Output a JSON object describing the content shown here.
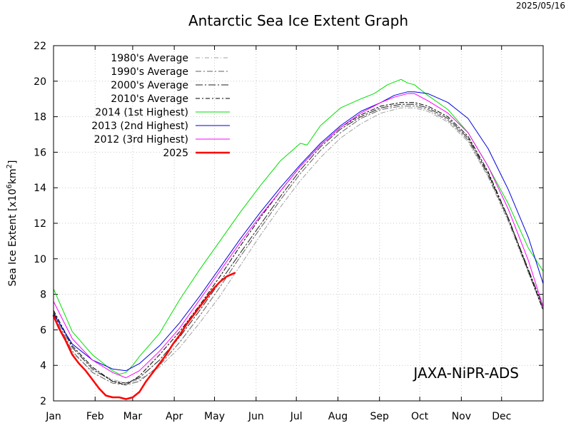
{
  "header": {
    "date": "2025/05/16"
  },
  "watermark": "JAXA-NiPR-ADS",
  "chart_data": {
    "type": "line",
    "title": "Antarctic Sea Ice Extent Graph",
    "xlabel": "",
    "ylabel": "Sea Ice Extent [x10^6km^2]",
    "ylabel_parts": {
      "pre": "Sea Ice Extent [x10",
      "sup1": "6",
      "mid": "km",
      "sup2": "2",
      "post": "]"
    },
    "xlim": [
      1,
      366
    ],
    "ylim": [
      2,
      22
    ],
    "xticks": [
      {
        "label": "Jan",
        "day": 1
      },
      {
        "label": "Feb",
        "day": 32
      },
      {
        "label": "Mar",
        "day": 60
      },
      {
        "label": "Apr",
        "day": 91
      },
      {
        "label": "May",
        "day": 121
      },
      {
        "label": "Jun",
        "day": 152
      },
      {
        "label": "Jul",
        "day": 182
      },
      {
        "label": "Aug",
        "day": 213
      },
      {
        "label": "Sep",
        "day": 244
      },
      {
        "label": "Oct",
        "day": 274
      },
      {
        "label": "Nov",
        "day": 305
      },
      {
        "label": "Dec",
        "day": 335
      }
    ],
    "yticks": [
      2,
      4,
      6,
      8,
      10,
      12,
      14,
      16,
      18,
      20,
      22
    ],
    "grid": true,
    "legend_position": "top-left",
    "series": [
      {
        "name": "1980's Average",
        "color": "#a0a0a0",
        "dash": "6,3,1,3",
        "width": 1,
        "x": [
          1,
          15,
          30,
          45,
          55,
          65,
          80,
          95,
          110,
          125,
          140,
          155,
          170,
          185,
          200,
          215,
          230,
          245,
          260,
          270,
          280,
          295,
          310,
          325,
          340,
          355,
          366
        ],
        "y": [
          6.8,
          4.7,
          3.7,
          3.2,
          3.0,
          3.2,
          3.9,
          5.0,
          6.4,
          7.9,
          9.6,
          11.3,
          12.9,
          14.4,
          15.7,
          16.8,
          17.6,
          18.2,
          18.5,
          18.5,
          18.3,
          17.7,
          16.6,
          14.6,
          12.1,
          9.2,
          7.1
        ]
      },
      {
        "name": "1990's Average",
        "color": "#606060",
        "dash": "8,3,2,3",
        "width": 1,
        "x": [
          1,
          15,
          30,
          45,
          55,
          65,
          80,
          95,
          110,
          125,
          140,
          155,
          170,
          185,
          200,
          215,
          230,
          245,
          260,
          270,
          280,
          295,
          310,
          325,
          340,
          355,
          366
        ],
        "y": [
          6.9,
          4.8,
          3.6,
          3.0,
          2.9,
          3.1,
          4.0,
          5.3,
          6.8,
          8.4,
          10.1,
          11.7,
          13.3,
          14.8,
          16.1,
          17.1,
          17.9,
          18.4,
          18.6,
          18.6,
          18.4,
          17.8,
          16.7,
          14.7,
          12.2,
          9.3,
          7.2
        ]
      },
      {
        "name": "2000's Average",
        "color": "#202020",
        "dash": "10,3,2,3",
        "width": 1,
        "x": [
          1,
          15,
          30,
          45,
          55,
          65,
          80,
          95,
          110,
          125,
          140,
          155,
          170,
          185,
          200,
          215,
          230,
          245,
          260,
          270,
          280,
          295,
          310,
          325,
          340,
          355,
          366
        ],
        "y": [
          7.0,
          5.0,
          3.8,
          3.1,
          3.0,
          3.3,
          4.3,
          5.6,
          7.1,
          8.7,
          10.3,
          11.9,
          13.5,
          15.0,
          16.3,
          17.3,
          18.0,
          18.5,
          18.7,
          18.7,
          18.5,
          17.9,
          16.8,
          14.8,
          12.3,
          9.4,
          7.3
        ]
      },
      {
        "name": "2010's Average",
        "color": "#000000",
        "dash": "6,3,2,3",
        "width": 1,
        "x": [
          1,
          15,
          30,
          45,
          55,
          65,
          80,
          95,
          110,
          125,
          140,
          155,
          170,
          185,
          200,
          215,
          230,
          245,
          260,
          270,
          280,
          295,
          310,
          325,
          340,
          355,
          366
        ],
        "y": [
          7.1,
          5.1,
          3.9,
          3.1,
          2.9,
          3.4,
          4.6,
          5.9,
          7.4,
          9.0,
          10.7,
          12.3,
          13.8,
          15.2,
          16.4,
          17.4,
          18.1,
          18.6,
          18.8,
          18.8,
          18.6,
          18.0,
          16.9,
          14.9,
          12.3,
          9.3,
          7.1
        ]
      },
      {
        "name": "2014 (1st Highest)",
        "color": "#00e000",
        "dash": "",
        "width": 1,
        "x": [
          1,
          15,
          30,
          45,
          50,
          55,
          60,
          65,
          80,
          95,
          110,
          125,
          140,
          155,
          170,
          185,
          190,
          200,
          215,
          230,
          240,
          250,
          260,
          265,
          270,
          280,
          295,
          310,
          325,
          340,
          355,
          366
        ],
        "y": [
          8.3,
          5.9,
          4.6,
          3.7,
          3.5,
          3.6,
          4.0,
          4.5,
          5.8,
          7.7,
          9.4,
          11.0,
          12.6,
          14.1,
          15.5,
          16.5,
          16.4,
          17.5,
          18.5,
          19.0,
          19.3,
          19.8,
          20.1,
          19.9,
          19.8,
          19.2,
          18.4,
          17.1,
          15.2,
          13.1,
          10.6,
          9.3
        ]
      },
      {
        "name": "2013 (2nd Highest)",
        "color": "#0000e0",
        "dash": "",
        "width": 1,
        "x": [
          1,
          15,
          30,
          45,
          55,
          65,
          80,
          95,
          110,
          125,
          140,
          155,
          170,
          185,
          200,
          215,
          230,
          245,
          255,
          265,
          270,
          280,
          295,
          310,
          325,
          340,
          355,
          366
        ],
        "y": [
          6.9,
          5.2,
          4.3,
          3.8,
          3.7,
          4.1,
          5.1,
          6.4,
          7.9,
          9.5,
          11.1,
          12.6,
          14.0,
          15.3,
          16.5,
          17.5,
          18.3,
          18.8,
          19.2,
          19.4,
          19.4,
          19.3,
          18.8,
          17.9,
          16.2,
          13.9,
          11.2,
          8.6
        ]
      },
      {
        "name": "2012 (3rd Highest)",
        "color": "#ff00ff",
        "dash": "",
        "width": 1,
        "x": [
          1,
          15,
          30,
          45,
          55,
          65,
          80,
          95,
          110,
          125,
          140,
          155,
          170,
          185,
          200,
          215,
          230,
          245,
          255,
          265,
          270,
          280,
          295,
          310,
          325,
          340,
          355,
          366
        ],
        "y": [
          7.6,
          5.5,
          4.3,
          3.6,
          3.3,
          3.7,
          4.8,
          6.1,
          7.7,
          9.3,
          10.9,
          12.4,
          13.8,
          15.2,
          16.4,
          17.4,
          18.2,
          18.8,
          19.1,
          19.3,
          19.3,
          18.9,
          18.2,
          17.1,
          15.2,
          12.8,
          9.9,
          7.3
        ]
      },
      {
        "name": "2025",
        "color": "#ff0000",
        "dash": "",
        "width": 2.5,
        "x": [
          1,
          5,
          10,
          15,
          20,
          25,
          30,
          35,
          40,
          45,
          50,
          55,
          60,
          65,
          70,
          75,
          80,
          85,
          90,
          95,
          100,
          105,
          110,
          115,
          120,
          125,
          130,
          136
        ],
        "y": [
          6.8,
          6.1,
          5.4,
          4.6,
          4.1,
          3.7,
          3.2,
          2.7,
          2.3,
          2.2,
          2.2,
          2.1,
          2.2,
          2.5,
          3.1,
          3.6,
          4.1,
          4.6,
          5.2,
          5.7,
          6.3,
          6.8,
          7.3,
          7.8,
          8.3,
          8.7,
          9.0,
          9.2
        ]
      }
    ]
  }
}
